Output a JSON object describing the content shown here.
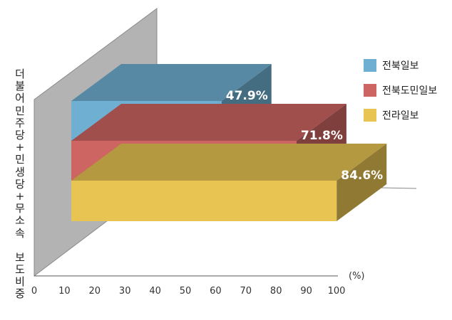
{
  "chart_data": {
    "type": "bar",
    "orientation": "horizontal",
    "three_d": true,
    "categories": [
      "전북일보",
      "전북도민일보",
      "전라일보"
    ],
    "values": [
      47.9,
      71.8,
      84.6
    ],
    "value_labels": [
      "47.9%",
      "71.8%",
      "84.6%"
    ],
    "colors": [
      "#6fafd2",
      "#cd6562",
      "#e8c453"
    ],
    "ylabel": "더불어민주당+민생당+무소속 보도 비중",
    "unit_label": "(%)",
    "xlim": [
      0,
      100
    ],
    "xticks": [
      0,
      10,
      20,
      30,
      40,
      50,
      60,
      70,
      80,
      90,
      100
    ],
    "legend_position": "right",
    "legend": [
      "전북일보",
      "전북도민일보",
      "전라일보"
    ]
  }
}
